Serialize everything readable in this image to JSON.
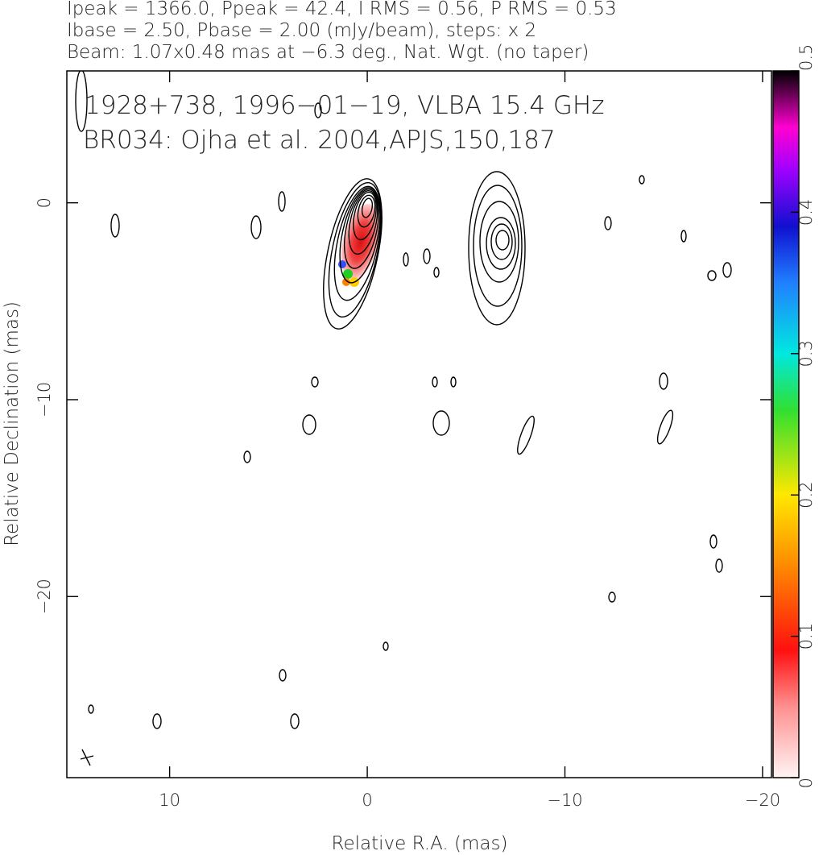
{
  "chart_data": {
    "type": "contour-map",
    "title_lines": [
      "Ipeak = 1366.0, Ppeak = 42.4, I RMS = 0.56, P RMS = 0.53",
      "Ibase = 2.50, Pbase = 2.00 (mJy/beam), steps: x 2",
      "Beam: 1.07x0.48 mas at −6.3 deg., Nat. Wgt. (no taper)"
    ],
    "annotations": [
      "1928+738, 1996−01−19, VLBA 15.4 GHz",
      "BR034: Ojha et al. 2004,APJS,150,187"
    ],
    "xlabel": "Relative R.A. (mas)",
    "ylabel": "Relative Declination (mas)",
    "xlim": [
      15.2,
      -20.45
    ],
    "ylim": [
      -29.2,
      6.7
    ],
    "xticks": [
      10,
      0,
      {
        "value": -10,
        "label": "−10"
      },
      {
        "value": -20,
        "label": "−20"
      }
    ],
    "yticks": [
      0,
      {
        "value": -10,
        "label": "−10"
      },
      {
        "value": -20,
        "label": "−20"
      }
    ],
    "colorbar_lim": [
      0,
      0.5
    ],
    "colorbar_ticks": [
      0,
      0.1,
      0.2,
      0.3,
      0.4,
      0.5
    ]
  }
}
